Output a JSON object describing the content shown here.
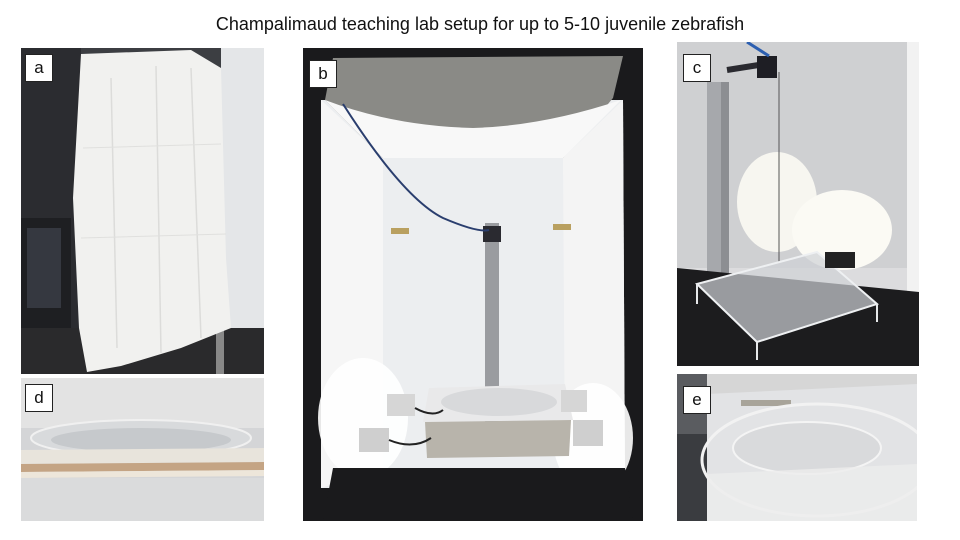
{
  "figure": {
    "title": "Champalimaud teaching lab setup for up to 5-10 juvenile zebrafish"
  },
  "panels": [
    {
      "label": "a"
    },
    {
      "label": "b"
    },
    {
      "label": "c"
    },
    {
      "label": "d"
    },
    {
      "label": "e"
    }
  ]
}
